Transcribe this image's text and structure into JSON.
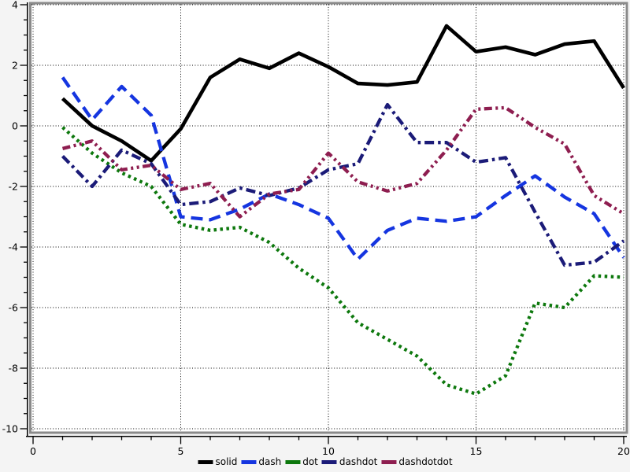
{
  "chart_data": {
    "type": "line",
    "title": "",
    "xlabel": "",
    "ylabel": "",
    "xlim": [
      0,
      20
    ],
    "ylim": [
      -10,
      4
    ],
    "x_major_ticks": [
      0,
      5,
      10,
      15,
      20
    ],
    "x_minor_tick_step": 1,
    "y_major_ticks": [
      4,
      2,
      0,
      -2,
      -4,
      -6,
      -8,
      -10
    ],
    "y_minor_tick_step": 0.5,
    "grid": "dotted-major",
    "legend_position": "bottom-center",
    "background_color": "#f4f4f4",
    "plot_background_color": "#ffffff",
    "frame_color": "#8a8a8a",
    "axis_color": "#000000",
    "grid_color": "#000000",
    "x": [
      1,
      2,
      3,
      4,
      5,
      6,
      7,
      8,
      9,
      10,
      11,
      12,
      13,
      14,
      15,
      16,
      17,
      18,
      19,
      20
    ],
    "series": [
      {
        "name": "solid",
        "line_style": "solid",
        "color": "#000000",
        "values": [
          0.9,
          0.0,
          -0.5,
          -1.15,
          -0.1,
          1.6,
          2.2,
          1.9,
          2.4,
          1.95,
          1.4,
          1.35,
          1.45,
          3.3,
          2.45,
          2.6,
          2.35,
          2.7,
          2.8,
          1.25
        ]
      },
      {
        "name": "dash",
        "line_style": "dash",
        "color": "#1535e0",
        "values": [
          1.6,
          0.2,
          1.3,
          0.35,
          -3.0,
          -3.1,
          -2.75,
          -2.25,
          -2.6,
          -3.05,
          -4.4,
          -3.45,
          -3.05,
          -3.15,
          -3.0,
          -2.3,
          -1.65,
          -2.35,
          -2.9,
          -4.35
        ]
      },
      {
        "name": "dot",
        "line_style": "dot",
        "color": "#0d780d",
        "values": [
          -0.05,
          -0.9,
          -1.55,
          -2.0,
          -3.25,
          -3.45,
          -3.35,
          -3.85,
          -4.7,
          -5.35,
          -6.5,
          -7.05,
          -7.6,
          -8.55,
          -8.85,
          -8.25,
          -5.85,
          -6.0,
          -4.95,
          -5.0
        ]
      },
      {
        "name": "dashdot",
        "line_style": "dashdot",
        "color": "#1b1b78",
        "values": [
          -1.0,
          -2.0,
          -0.8,
          -1.25,
          -2.6,
          -2.5,
          -2.05,
          -2.3,
          -2.05,
          -1.45,
          -1.25,
          0.7,
          -0.55,
          -0.55,
          -1.2,
          -1.05,
          -2.85,
          -4.6,
          -4.5,
          -3.8
        ]
      },
      {
        "name": "dashdotdot",
        "line_style": "dashdotdot",
        "color": "#8e1e50",
        "values": [
          -0.75,
          -0.5,
          -1.45,
          -1.3,
          -2.1,
          -1.9,
          -3.0,
          -2.25,
          -2.1,
          -0.9,
          -1.85,
          -2.15,
          -1.9,
          -0.8,
          0.55,
          0.6,
          -0.05,
          -0.6,
          -2.3,
          -2.9
        ]
      }
    ]
  }
}
